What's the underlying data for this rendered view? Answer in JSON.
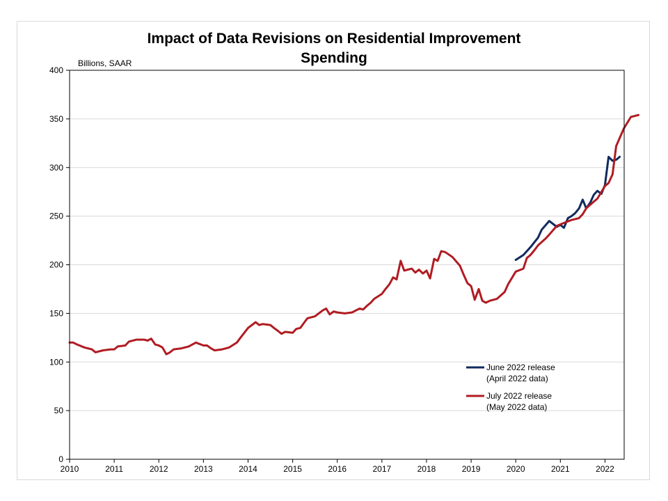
{
  "chart_data": {
    "type": "line",
    "title_line1": "Impact of Data Revisions on Residential Improvement",
    "title_line2": "Spending",
    "unit_label": "Billions, SAAR",
    "ylim": [
      0,
      400
    ],
    "yticks": [
      0,
      50,
      100,
      150,
      200,
      250,
      300,
      350,
      400
    ],
    "xlim": [
      2010,
      2022.33
    ],
    "xticks": [
      2010,
      2011,
      2012,
      2013,
      2014,
      2015,
      2016,
      2017,
      2018,
      2019,
      2020,
      2021,
      2022
    ],
    "grid": true,
    "legend_position": "bottom-right",
    "series": [
      {
        "name_line1": "June 2022 release",
        "name_line2": "(April 2022 data)",
        "color": "#0f2a5c",
        "points": [
          [
            2020.0,
            205
          ],
          [
            2020.17,
            210
          ],
          [
            2020.33,
            218
          ],
          [
            2020.5,
            228
          ],
          [
            2020.58,
            236
          ],
          [
            2020.75,
            245
          ],
          [
            2020.92,
            239
          ],
          [
            2021.0,
            241
          ],
          [
            2021.08,
            238
          ],
          [
            2021.17,
            248
          ],
          [
            2021.25,
            250
          ],
          [
            2021.33,
            253
          ],
          [
            2021.42,
            258
          ],
          [
            2021.5,
            267
          ],
          [
            2021.58,
            258
          ],
          [
            2021.67,
            264
          ],
          [
            2021.75,
            272
          ],
          [
            2021.83,
            276
          ],
          [
            2021.92,
            273
          ],
          [
            2022.0,
            282
          ],
          [
            2022.08,
            311
          ],
          [
            2022.17,
            307
          ],
          [
            2022.25,
            308
          ],
          [
            2022.33,
            311
          ]
        ]
      },
      {
        "name_line1": "July 2022 release",
        "name_line2": "(May 2022 data)",
        "color": "#b01c22",
        "points": [
          [
            2010.0,
            120
          ],
          [
            2010.08,
            120
          ],
          [
            2010.17,
            118
          ],
          [
            2010.33,
            115
          ],
          [
            2010.5,
            113
          ],
          [
            2010.58,
            110
          ],
          [
            2010.75,
            112
          ],
          [
            2010.92,
            113
          ],
          [
            2011.0,
            113
          ],
          [
            2011.08,
            116
          ],
          [
            2011.25,
            117
          ],
          [
            2011.33,
            121
          ],
          [
            2011.5,
            123
          ],
          [
            2011.67,
            123
          ],
          [
            2011.75,
            122
          ],
          [
            2011.83,
            124
          ],
          [
            2011.92,
            118
          ],
          [
            2012.0,
            117
          ],
          [
            2012.08,
            115
          ],
          [
            2012.17,
            108
          ],
          [
            2012.25,
            110
          ],
          [
            2012.33,
            113
          ],
          [
            2012.5,
            114
          ],
          [
            2012.67,
            116
          ],
          [
            2012.83,
            120
          ],
          [
            2013.0,
            117
          ],
          [
            2013.08,
            117
          ],
          [
            2013.17,
            114
          ],
          [
            2013.25,
            112
          ],
          [
            2013.42,
            113
          ],
          [
            2013.58,
            115
          ],
          [
            2013.75,
            120
          ],
          [
            2013.83,
            125
          ],
          [
            2014.0,
            135
          ],
          [
            2014.17,
            141
          ],
          [
            2014.25,
            138
          ],
          [
            2014.33,
            139
          ],
          [
            2014.5,
            138
          ],
          [
            2014.58,
            135
          ],
          [
            2014.67,
            132
          ],
          [
            2014.75,
            129
          ],
          [
            2014.83,
            131
          ],
          [
            2015.0,
            130
          ],
          [
            2015.08,
            134
          ],
          [
            2015.17,
            135
          ],
          [
            2015.25,
            140
          ],
          [
            2015.33,
            145
          ],
          [
            2015.5,
            147
          ],
          [
            2015.67,
            153
          ],
          [
            2015.75,
            155
          ],
          [
            2015.83,
            149
          ],
          [
            2015.92,
            152
          ],
          [
            2016.0,
            151
          ],
          [
            2016.17,
            150
          ],
          [
            2016.33,
            151
          ],
          [
            2016.5,
            155
          ],
          [
            2016.58,
            154
          ],
          [
            2016.67,
            158
          ],
          [
            2016.75,
            161
          ],
          [
            2016.83,
            165
          ],
          [
            2017.0,
            170
          ],
          [
            2017.08,
            175
          ],
          [
            2017.17,
            180
          ],
          [
            2017.25,
            187
          ],
          [
            2017.33,
            185
          ],
          [
            2017.42,
            204
          ],
          [
            2017.5,
            194
          ],
          [
            2017.58,
            195
          ],
          [
            2017.67,
            196
          ],
          [
            2017.75,
            192
          ],
          [
            2017.83,
            195
          ],
          [
            2017.92,
            191
          ],
          [
            2018.0,
            194
          ],
          [
            2018.08,
            186
          ],
          [
            2018.17,
            206
          ],
          [
            2018.25,
            204
          ],
          [
            2018.33,
            214
          ],
          [
            2018.42,
            213
          ],
          [
            2018.58,
            208
          ],
          [
            2018.75,
            199
          ],
          [
            2018.83,
            190
          ],
          [
            2018.92,
            181
          ],
          [
            2019.0,
            178
          ],
          [
            2019.08,
            164
          ],
          [
            2019.17,
            175
          ],
          [
            2019.25,
            163
          ],
          [
            2019.33,
            161
          ],
          [
            2019.42,
            163
          ],
          [
            2019.58,
            165
          ],
          [
            2019.75,
            172
          ],
          [
            2019.83,
            180
          ],
          [
            2020.0,
            193
          ],
          [
            2020.17,
            196
          ],
          [
            2020.25,
            207
          ],
          [
            2020.33,
            210
          ],
          [
            2020.42,
            215
          ],
          [
            2020.5,
            220
          ],
          [
            2020.67,
            227
          ],
          [
            2020.75,
            231
          ],
          [
            2020.92,
            240
          ],
          [
            2021.08,
            243
          ],
          [
            2021.25,
            246
          ],
          [
            2021.42,
            248
          ],
          [
            2021.5,
            252
          ],
          [
            2021.58,
            258
          ],
          [
            2021.75,
            265
          ],
          [
            2021.83,
            268
          ],
          [
            2022.0,
            281
          ],
          [
            2022.08,
            284
          ],
          [
            2022.17,
            293
          ],
          [
            2022.25,
            322
          ],
          [
            2022.42,
            340
          ],
          [
            2022.58,
            352
          ],
          [
            2022.75,
            354
          ]
        ]
      }
    ]
  }
}
